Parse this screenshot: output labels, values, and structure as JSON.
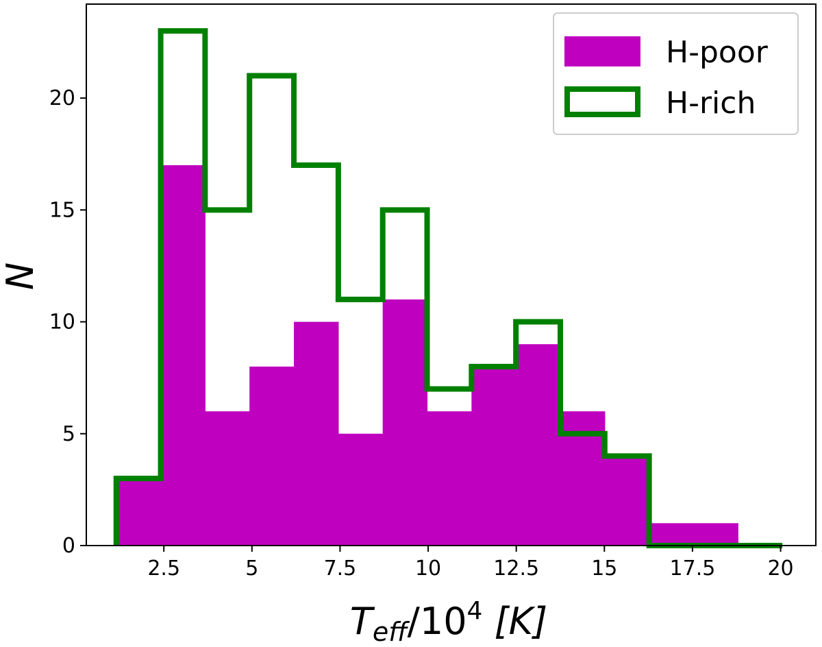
{
  "chart_data": {
    "type": "bar",
    "xlabel": "T_eff/10^4 [K]",
    "xlabel_parts": {
      "main": "T",
      "sub": "eff",
      "mid": "/10",
      "sup": "4",
      "end": " [K]"
    },
    "ylabel": "N",
    "xlim": [
      0.3,
      21.0
    ],
    "ylim": [
      0,
      24.2
    ],
    "xticks": [
      2.5,
      5,
      7.5,
      10,
      12.5,
      15,
      17.5,
      20
    ],
    "xtick_labels": [
      "2.5",
      "5",
      "7.5",
      "10",
      "12.5",
      "15",
      "17.5",
      "20"
    ],
    "yticks": [
      0,
      5,
      10,
      15,
      20
    ],
    "ytick_labels": [
      "0",
      "5",
      "10",
      "15",
      "20"
    ],
    "bin_edges": [
      1.15,
      2.41,
      3.67,
      4.93,
      6.19,
      7.45,
      8.71,
      9.97,
      11.23,
      12.49,
      13.75,
      15.01,
      16.27,
      17.53,
      18.79
    ],
    "series": [
      {
        "name": "H-poor",
        "style": "filled",
        "color": "#bf00bf",
        "edges": [
          1.15,
          2.41,
          3.67,
          4.93,
          6.19,
          7.45,
          8.71,
          9.97,
          11.23,
          12.49,
          13.75,
          15.01,
          16.27,
          17.53,
          18.79
        ],
        "values": [
          3,
          17,
          6,
          8,
          10,
          5,
          11,
          6,
          8,
          9,
          6,
          4,
          1,
          1
        ]
      },
      {
        "name": "H-rich",
        "style": "step",
        "color": "#008000",
        "edges": [
          1.15,
          2.41,
          3.67,
          4.93,
          6.19,
          7.45,
          8.71,
          9.97,
          11.23,
          12.49,
          13.75,
          15.01,
          16.27,
          17.53,
          18.79,
          20.05
        ],
        "values": [
          3,
          23,
          15,
          21,
          17,
          11,
          15,
          7,
          8,
          10,
          5,
          4,
          0,
          0,
          0
        ]
      }
    ],
    "legend": {
      "placement": "top-right",
      "entries": [
        "H-poor",
        "H-rich"
      ]
    }
  }
}
